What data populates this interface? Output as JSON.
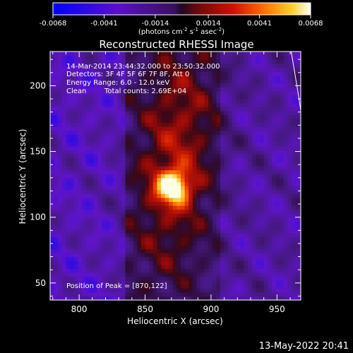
{
  "chart_data": {
    "type": "heatmap",
    "title": "Reconstructed RHESSI Image",
    "xlabel": "Heliocentric X (arcsec)",
    "ylabel": "Heliocentric Y (arcsec)",
    "xlim": [
      778,
      968
    ],
    "ylim": [
      37,
      226
    ],
    "xticks": [
      800,
      850,
      900,
      950
    ],
    "yticks": [
      50,
      100,
      150,
      200
    ],
    "colorbar": {
      "range": [
        -0.0068,
        0.0068
      ],
      "ticks": [
        "-0.0068",
        "-0.0041",
        "-0.0014",
        "0.0014",
        "0.0041",
        "0.0068"
      ],
      "label_prefix": "(photons cm",
      "label_exp1": "-2",
      "label_mid1": " s",
      "label_exp2": "-1",
      "label_mid2": " asec",
      "label_exp3": "-2",
      "label_suffix": ")"
    },
    "annotations": {
      "time": "14-Mar-2014 23:44:32.000 to 23:50:32.000",
      "detectors": "Detectors: 3F 4F 5F 6F 7F 8F, Att 0",
      "energy": "Energy Range: 6.0 - 12.0 keV",
      "algorithm": "Clean",
      "counts": "Total counts: 2.69E+04",
      "peak": "Position of Peak = [870,122]"
    },
    "peak": {
      "x": 870,
      "y": 122
    },
    "limb_circle": {
      "x_at_top": 965,
      "x_at_bottom": 985
    },
    "footer_date": "13-May-2022 20:41"
  }
}
